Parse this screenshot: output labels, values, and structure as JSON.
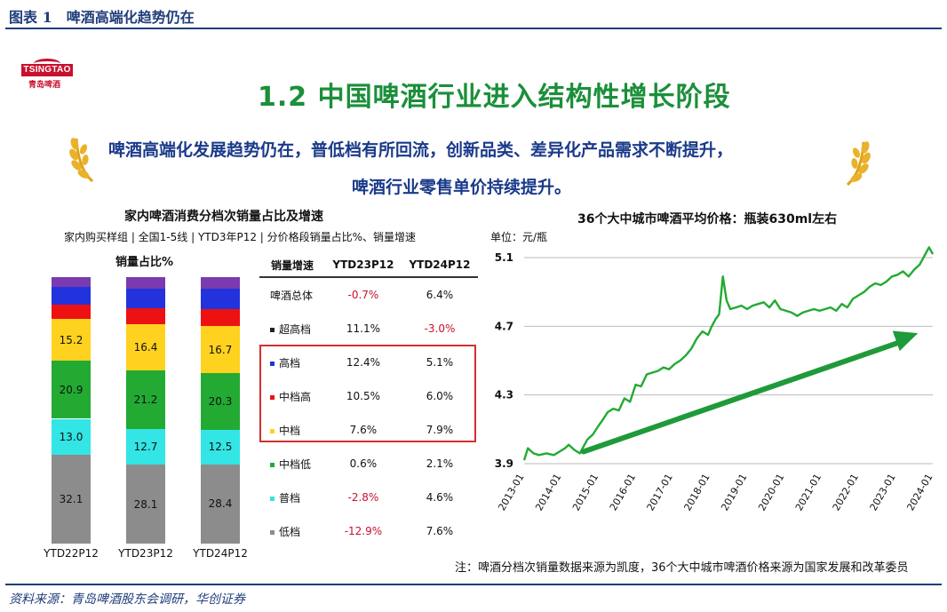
{
  "figure_title": "图表 1　啤酒高端化趋势仍在",
  "source": "资料来源：青岛啤酒股东会调研，华创证券",
  "logo": {
    "brand": "TSINGTAO",
    "brand_cn": "青岛啤酒"
  },
  "slide": {
    "title": "1.2 中国啤酒行业进入结构性增长阶段",
    "subtitle_line1": "啤酒高端化发展趋势仍在，普低档有所回流，创新品类、差异化产品需求不断提升，",
    "subtitle_line2": "啤酒行业零售单价持续提升。"
  },
  "note": "注：啤酒分档次销量数据来源为凯度，36个大中城市啤酒价格来源为国家发展和改革委员",
  "chart_data": [
    {
      "type": "bar",
      "stacked": true,
      "title": "家内啤酒消费分档次销量占比及增速",
      "subtitle": "家内购买样组 | 全国1-5线 | YTD3年P12 | 分价格段销量占比%、销量增速",
      "ylabel": "销量占比%",
      "categories": [
        "YTD22P12",
        "YTD23P12",
        "YTD24P12"
      ],
      "series": [
        {
          "name": "低档",
          "color": "#8c8c8c",
          "values": [
            32.1,
            28.1,
            28.4
          ]
        },
        {
          "name": "普档",
          "color": "#33e5e5",
          "values": [
            13.0,
            12.7,
            12.5
          ]
        },
        {
          "name": "中档低",
          "color": "#22aa33",
          "values": [
            20.9,
            21.2,
            20.3
          ]
        },
        {
          "name": "中档",
          "color": "#ffd21f",
          "values": [
            15.2,
            16.4,
            16.7
          ]
        },
        {
          "name": "中档高",
          "color": "#ee1111",
          "values": [
            5.2,
            5.8,
            6.1
          ]
        },
        {
          "name": "高档",
          "color": "#2233dd",
          "values": [
            6.3,
            7.0,
            7.3
          ]
        },
        {
          "name": "超高档",
          "color": "#7a3bb0",
          "values": [
            3.6,
            4.0,
            4.2
          ]
        }
      ],
      "data_labels": {
        "低档": [
          "32.1",
          "28.1",
          "28.4"
        ],
        "普档": [
          "13.0",
          "12.7",
          "12.5"
        ],
        "中档低": [
          "20.9",
          "21.2",
          "20.3"
        ],
        "中档": [
          "15.2",
          "16.4",
          "16.7"
        ]
      }
    },
    {
      "type": "table",
      "columns": [
        "销量增速",
        "YTD23P12",
        "YTD24P12"
      ],
      "rows": [
        {
          "name": "啤酒总体",
          "marker": "",
          "v23": "-0.7%",
          "v24": "6.4%",
          "neg23": true,
          "neg24": false
        },
        {
          "name": "超高档",
          "marker": "#222222",
          "v23": "11.1%",
          "v24": "-3.0%",
          "neg23": false,
          "neg24": true
        },
        {
          "name": "高档",
          "marker": "#2233dd",
          "v23": "12.4%",
          "v24": "5.1%",
          "neg23": false,
          "neg24": false
        },
        {
          "name": "中档高",
          "marker": "#ee1111",
          "v23": "10.5%",
          "v24": "6.0%",
          "neg23": false,
          "neg24": false
        },
        {
          "name": "中档",
          "marker": "#ffd21f",
          "v23": "7.6%",
          "v24": "7.9%",
          "neg23": false,
          "neg24": false
        },
        {
          "name": "中档低",
          "marker": "#22aa33",
          "v23": "0.6%",
          "v24": "2.1%",
          "neg23": false,
          "neg24": false
        },
        {
          "name": "普档",
          "marker": "#33e5e5",
          "v23": "-2.8%",
          "v24": "4.6%",
          "neg23": true,
          "neg24": false
        },
        {
          "name": "低档",
          "marker": "#8c8c8c",
          "v23": "-12.9%",
          "v24": "7.6%",
          "neg23": true,
          "neg24": false
        }
      ]
    },
    {
      "type": "line",
      "title": "36个大中城市啤酒平均价格：瓶装630ml左右",
      "ylabel": "单位：元/瓶",
      "ylim": [
        3.9,
        5.2
      ],
      "yticks": [
        "3.9",
        "4.3",
        "4.7",
        "5.1"
      ],
      "xticks": [
        "2013-01",
        "2014-01",
        "2015-01",
        "2016-01",
        "2017-01",
        "2018-01",
        "2019-01",
        "2020-01",
        "2021-01",
        "2022-01",
        "2023-01",
        "2024-01"
      ],
      "xlim": [
        2013.0,
        2024.0
      ],
      "color": "#22aa33",
      "trend_arrow": {
        "from": [
          2014.6,
          3.97
        ],
        "to": [
          2023.6,
          4.66
        ]
      },
      "points": [
        [
          2013.0,
          3.92
        ],
        [
          2013.1,
          3.99
        ],
        [
          2013.25,
          3.96
        ],
        [
          2013.4,
          3.95
        ],
        [
          2013.6,
          3.96
        ],
        [
          2013.8,
          3.95
        ],
        [
          2013.95,
          3.97
        ],
        [
          2014.1,
          3.99
        ],
        [
          2014.2,
          4.01
        ],
        [
          2014.35,
          3.98
        ],
        [
          2014.5,
          3.96
        ],
        [
          2014.7,
          4.04
        ],
        [
          2014.85,
          4.07
        ],
        [
          2015.0,
          4.12
        ],
        [
          2015.1,
          4.15
        ],
        [
          2015.25,
          4.2
        ],
        [
          2015.4,
          4.22
        ],
        [
          2015.55,
          4.21
        ],
        [
          2015.7,
          4.28
        ],
        [
          2015.85,
          4.26
        ],
        [
          2016.0,
          4.36
        ],
        [
          2016.15,
          4.35
        ],
        [
          2016.3,
          4.42
        ],
        [
          2016.45,
          4.43
        ],
        [
          2016.6,
          4.44
        ],
        [
          2016.75,
          4.46
        ],
        [
          2016.9,
          4.45
        ],
        [
          2017.05,
          4.48
        ],
        [
          2017.2,
          4.5
        ],
        [
          2017.35,
          4.53
        ],
        [
          2017.5,
          4.57
        ],
        [
          2017.65,
          4.63
        ],
        [
          2017.8,
          4.67
        ],
        [
          2017.95,
          4.65
        ],
        [
          2018.05,
          4.7
        ],
        [
          2018.15,
          4.74
        ],
        [
          2018.25,
          4.77
        ],
        [
          2018.35,
          4.99
        ],
        [
          2018.45,
          4.85
        ],
        [
          2018.55,
          4.8
        ],
        [
          2018.7,
          4.81
        ],
        [
          2018.85,
          4.82
        ],
        [
          2019.0,
          4.8
        ],
        [
          2019.15,
          4.82
        ],
        [
          2019.3,
          4.83
        ],
        [
          2019.45,
          4.84
        ],
        [
          2019.6,
          4.81
        ],
        [
          2019.75,
          4.85
        ],
        [
          2019.9,
          4.8
        ],
        [
          2020.05,
          4.79
        ],
        [
          2020.2,
          4.78
        ],
        [
          2020.35,
          4.76
        ],
        [
          2020.5,
          4.78
        ],
        [
          2020.65,
          4.79
        ],
        [
          2020.8,
          4.8
        ],
        [
          2020.95,
          4.79
        ],
        [
          2021.1,
          4.8
        ],
        [
          2021.25,
          4.81
        ],
        [
          2021.4,
          4.79
        ],
        [
          2021.55,
          4.83
        ],
        [
          2021.7,
          4.81
        ],
        [
          2021.85,
          4.86
        ],
        [
          2022.0,
          4.88
        ],
        [
          2022.15,
          4.9
        ],
        [
          2022.3,
          4.93
        ],
        [
          2022.45,
          4.95
        ],
        [
          2022.6,
          4.94
        ],
        [
          2022.75,
          4.96
        ],
        [
          2022.9,
          4.99
        ],
        [
          2023.05,
          5.0
        ],
        [
          2023.2,
          5.02
        ],
        [
          2023.35,
          4.99
        ],
        [
          2023.5,
          5.03
        ],
        [
          2023.65,
          5.06
        ],
        [
          2023.8,
          5.12
        ],
        [
          2023.9,
          5.16
        ],
        [
          2024.0,
          5.12
        ]
      ]
    }
  ]
}
